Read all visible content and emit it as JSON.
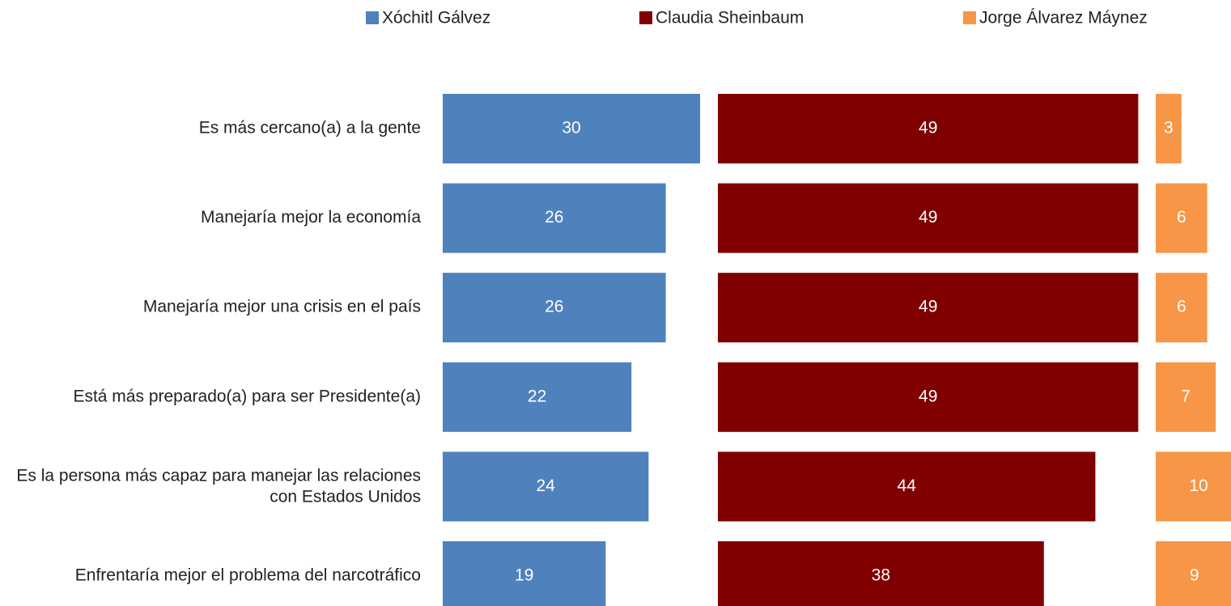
{
  "chart_data": {
    "type": "bar",
    "orientation": "horizontal",
    "layout": "panels",
    "categories": [
      "Es más cercano(a) a la gente",
      "Manejaría mejor la economía",
      "Manejaría mejor una crisis en el país",
      "Está más preparado(a) para ser Presidente(a)",
      "Es la persona más capaz para manejar las relaciones con Estados Unidos",
      "Enfrentaría mejor el problema del narcotráfico"
    ],
    "series": [
      {
        "name": "Xóchitl Gálvez",
        "color": "#4f81bd",
        "values": [
          30,
          26,
          26,
          22,
          24,
          19
        ]
      },
      {
        "name": "Claudia Sheinbaum",
        "color": "#800000",
        "values": [
          49,
          49,
          49,
          49,
          44,
          38
        ]
      },
      {
        "name": "Jorge Álvarez Máynez",
        "color": "#f79646",
        "values": [
          3,
          6,
          6,
          7,
          10,
          9
        ]
      }
    ],
    "legend": "top"
  }
}
